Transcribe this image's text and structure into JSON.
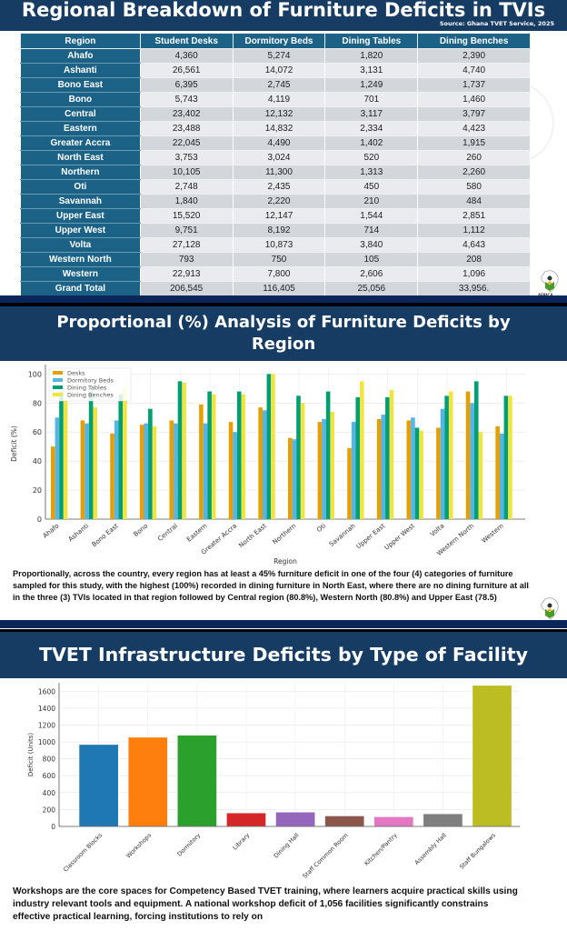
{
  "slide1": {
    "title": "Regional Breakdown of Furniture Deficits in TVIs",
    "source": "Source: Ghana TVET Service, 2025",
    "table": {
      "headers": [
        "Region",
        "Student Desks",
        "Dormitory Beds",
        "Dining Tables",
        "Dining Benches"
      ],
      "rows": [
        [
          "Ahafo",
          "4,360",
          "5,274",
          "1,820",
          "2,390"
        ],
        [
          "Ashanti",
          "26,561",
          "14,072",
          "3,131",
          "4,740"
        ],
        [
          "Bono East",
          "6,395",
          "2,745",
          "1,249",
          "1,737"
        ],
        [
          "Bono",
          "5,743",
          "4,119",
          "701",
          "1,460"
        ],
        [
          "Central",
          "23,402",
          "12,132",
          "3,117",
          "3,797"
        ],
        [
          "Eastern",
          "23,488",
          "14,832",
          "2,334",
          "4,423"
        ],
        [
          "Greater Accra",
          "22,045",
          "4,490",
          "1,402",
          "1,915"
        ],
        [
          "North East",
          "3,753",
          "3,024",
          "520",
          "260"
        ],
        [
          "Northern",
          "10,105",
          "11,300",
          "1,313",
          "2,260"
        ],
        [
          "Oti",
          "2,748",
          "2,435",
          "450",
          "580"
        ],
        [
          "Savannah",
          "1,840",
          "2,220",
          "210",
          "484"
        ],
        [
          "Upper East",
          "15,520",
          "12,147",
          "1,544",
          "2,851"
        ],
        [
          "Upper West",
          "9,751",
          "8,192",
          "714",
          "1,112"
        ],
        [
          "Volta",
          "27,128",
          "10,873",
          "3,840",
          "4,643"
        ],
        [
          "Western North",
          "793",
          "750",
          "105",
          "208"
        ],
        [
          "Western",
          "22,913",
          "7,800",
          "2,606",
          "1,096"
        ],
        [
          "Grand Total",
          "206,545",
          "116,405",
          "25,056",
          "33,956."
        ]
      ]
    },
    "logo_label": "AFRICA"
  },
  "slide2": {
    "title": "Proportional (%) Analysis of Furniture Deficits by Region",
    "paragraph": "Proportionally, across the country, every region has at least a 45% furniture deficit in one of the four (4) categories of furniture sampled for this study, with the highest (100%) recorded in dining furniture in North East, where there are no dining furniture at all in the three (3) TVIs located in that region followed by Central region (80.8%), Western North (80.8%) and Upper East (78.5)",
    "logo_label": "AFRICA"
  },
  "slide3": {
    "title": "TVET Infrastructure Deficits by Type of Facility",
    "paragraph": "Workshops are the core spaces for Competency Based TVET training, where learners acquire practical skills using industry relevant tools and equipment. A national workshop deficit of 1,056 facilities significantly constrains effective practical learning, forcing institutions to rely on"
  },
  "chart_data": [
    {
      "type": "bar",
      "title": "",
      "xlabel": "Region",
      "ylabel": "Deficit (%)",
      "ylim": [
        0,
        100
      ],
      "yticks": [
        0,
        20,
        40,
        60,
        80,
        100
      ],
      "grid": true,
      "legend": "top-left",
      "categories": [
        "Ahafo",
        "Ashanti",
        "Bono East",
        "Bono",
        "Central",
        "Eastern",
        "Greater Accra",
        "North East",
        "Northern",
        "Oti",
        "Savannah",
        "Upper East",
        "Upper West",
        "Volta",
        "Western North",
        "Western"
      ],
      "series": [
        {
          "name": "Desks",
          "color": "#e69f00",
          "values": [
            50,
            68,
            59,
            65,
            68,
            79,
            67,
            77,
            56,
            67,
            49,
            69,
            68,
            63,
            88,
            64
          ]
        },
        {
          "name": "Dormitory Beds",
          "color": "#56b4e9",
          "values": [
            70,
            66,
            68,
            66,
            66,
            66,
            60,
            75,
            55,
            69,
            67,
            72,
            70,
            76,
            80,
            59
          ]
        },
        {
          "name": "Dining Tables",
          "color": "#009e73",
          "values": [
            88,
            88,
            86,
            76,
            95,
            88,
            88,
            100,
            85,
            88,
            84,
            84,
            63,
            85,
            95,
            85
          ]
        },
        {
          "name": "Dining Benches",
          "color": "#f0e442",
          "values": [
            82,
            77,
            90,
            64,
            94,
            86,
            86,
            100,
            80,
            74,
            95,
            89,
            61,
            88,
            60,
            85
          ]
        }
      ]
    },
    {
      "type": "bar",
      "title": "",
      "xlabel": "",
      "ylabel": "Deficit (Units)",
      "ylim": [
        0,
        1700
      ],
      "yticks": [
        0,
        200,
        400,
        600,
        800,
        1000,
        1200,
        1400,
        1600
      ],
      "grid": true,
      "categories": [
        "Classroom Blocks",
        "Workshops",
        "Dormitory",
        "Library",
        "Dining Hall",
        "Staff Common Room",
        "Kitchen/Pantry",
        "Assembly Hall",
        "Staff Bungalows"
      ],
      "values": [
        970,
        1056,
        1080,
        160,
        170,
        125,
        115,
        150,
        1670
      ],
      "colors": [
        "#1f77b4",
        "#ff7f0e",
        "#2ca02c",
        "#d62728",
        "#9467bd",
        "#8c564b",
        "#e377c2",
        "#7f7f7f",
        "#bcbd22"
      ]
    }
  ]
}
